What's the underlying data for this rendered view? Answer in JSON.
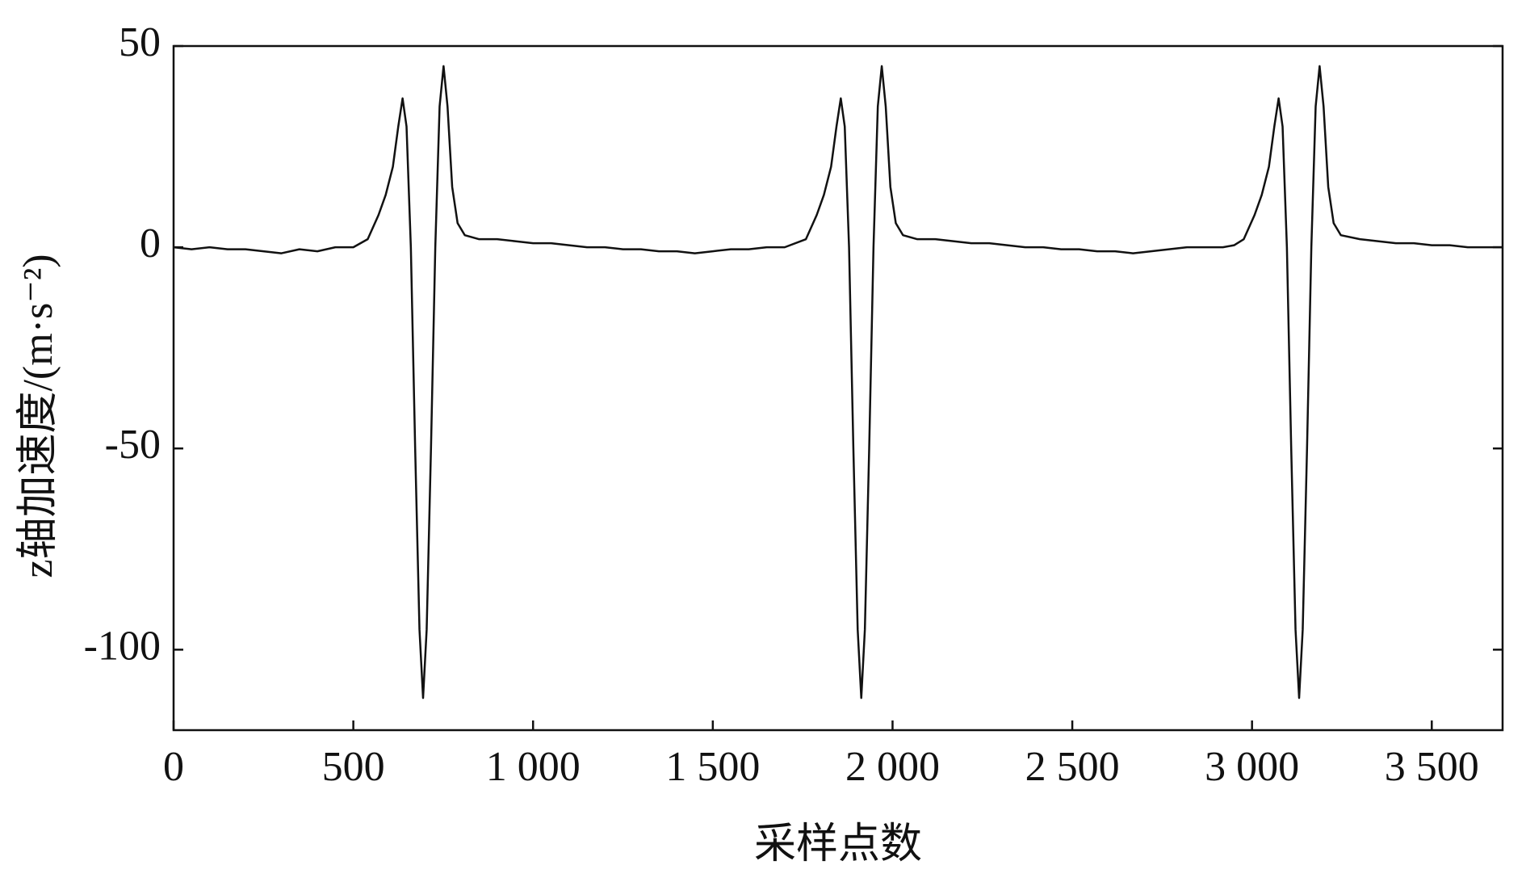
{
  "chart_data": {
    "type": "line",
    "xlabel": "采样点数",
    "ylabel": "z轴加速度/(m·s⁻²)",
    "xlim": [
      0,
      3697
    ],
    "ylim": [
      -120,
      50
    ],
    "xticks": [
      0,
      500,
      {
        "value": 1000,
        "label": "1 000"
      },
      {
        "value": 1500,
        "label": "1 500"
      },
      {
        "value": 2000,
        "label": "2 000"
      },
      {
        "value": 2500,
        "label": "2 500"
      },
      {
        "value": 3000,
        "label": "3 000"
      },
      {
        "value": 3500,
        "label": "3 500"
      }
    ],
    "yticks": [
      50,
      0,
      -50,
      -100
    ],
    "series": [
      {
        "color": "#111111",
        "x": [
          0,
          50,
          100,
          150,
          200,
          250,
          300,
          350,
          400,
          450,
          500,
          540,
          570,
          590,
          610,
          625,
          637,
          648,
          660,
          672,
          684,
          694,
          704,
          716,
          728,
          740,
          751,
          762,
          775,
          790,
          810,
          850,
          900,
          950,
          1000,
          1050,
          1100,
          1150,
          1200,
          1250,
          1300,
          1350,
          1400,
          1450,
          1500,
          1550,
          1600,
          1650,
          1700,
          1759,
          1789,
          1809,
          1829,
          1844,
          1856,
          1867,
          1879,
          1891,
          1903,
          1913,
          1923,
          1935,
          1947,
          1959,
          1970,
          1981,
          1994,
          2009,
          2029,
          2069,
          2119,
          2169,
          2219,
          2269,
          2319,
          2369,
          2419,
          2469,
          2519,
          2569,
          2619,
          2669,
          2719,
          2769,
          2819,
          2869,
          2919,
          2950,
          2977,
          3007,
          3027,
          3047,
          3062,
          3074,
          3085,
          3097,
          3109,
          3121,
          3131,
          3141,
          3153,
          3165,
          3177,
          3188,
          3199,
          3212,
          3227,
          3247,
          3300,
          3350,
          3400,
          3450,
          3500,
          3550,
          3600,
          3650,
          3697
        ],
        "values": [
          0,
          -0.5,
          0,
          -0.5,
          -0.5,
          -1,
          -1.5,
          -0.5,
          -1,
          0,
          0,
          2,
          8,
          13,
          20,
          30,
          37,
          30,
          0,
          -50,
          -95,
          -112,
          -95,
          -50,
          0,
          35,
          45,
          35,
          15,
          6,
          3,
          2,
          2,
          1.5,
          1,
          1,
          0.5,
          0,
          0,
          -0.5,
          -0.5,
          -1,
          -1,
          -1.5,
          -1,
          -0.5,
          -0.5,
          0,
          0,
          2,
          8,
          13,
          20,
          30,
          37,
          30,
          0,
          -50,
          -95,
          -112,
          -95,
          -50,
          0,
          35,
          45,
          35,
          15,
          6,
          3,
          2,
          2,
          1.5,
          1,
          1,
          0.5,
          0,
          0,
          -0.5,
          -0.5,
          -1,
          -1,
          -1.5,
          -1,
          -0.5,
          0,
          0,
          0,
          0.5,
          2,
          8,
          13,
          20,
          30,
          37,
          30,
          0,
          -50,
          -95,
          -112,
          -95,
          -50,
          0,
          35,
          45,
          35,
          15,
          6,
          3,
          2,
          1.5,
          1,
          1,
          0.5,
          0.5,
          0,
          0,
          0
        ]
      }
    ]
  }
}
